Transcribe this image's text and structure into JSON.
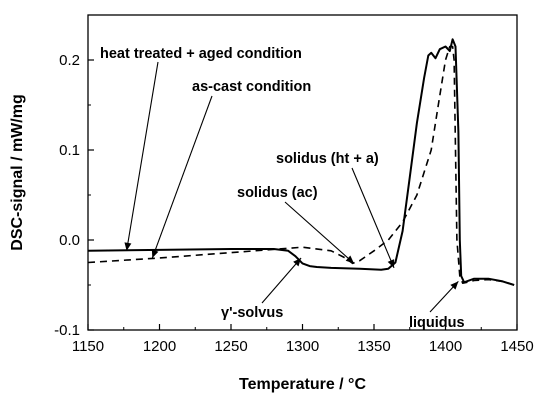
{
  "chart_data": {
    "type": "line",
    "xlabel": "Temperature  / °C",
    "ylabel": "DSC-signal  / mW/mg",
    "xlim": [
      1150,
      1450
    ],
    "ylim": [
      -0.1,
      0.25
    ],
    "x_ticks": [
      1150,
      1200,
      1250,
      1300,
      1350,
      1400,
      1450
    ],
    "x_tick_labels": [
      "1150",
      "1200",
      "1250",
      "1300",
      "1350",
      "1400",
      "1450"
    ],
    "y_ticks": [
      -0.1,
      0.0,
      0.1,
      0.2
    ],
    "y_tick_labels": [
      "-0.1",
      "0.0",
      "0.1",
      "0.2"
    ],
    "grid": false,
    "series": [
      {
        "name": "heat treated + aged condition",
        "style": "solid",
        "color": "#000000",
        "x": [
          1150,
          1200,
          1250,
          1280,
          1290,
          1295,
          1300,
          1305,
          1310,
          1320,
          1340,
          1355,
          1360,
          1365,
          1370,
          1375,
          1380,
          1385,
          1388,
          1390,
          1393,
          1396,
          1400,
          1403,
          1405,
          1407,
          1409,
          1410,
          1411,
          1413,
          1420,
          1430,
          1440,
          1448
        ],
        "y": [
          -0.012,
          -0.011,
          -0.01,
          -0.01,
          -0.012,
          -0.018,
          -0.026,
          -0.029,
          -0.03,
          -0.031,
          -0.032,
          -0.033,
          -0.032,
          -0.025,
          0.01,
          0.07,
          0.13,
          0.18,
          0.205,
          0.208,
          0.202,
          0.212,
          0.215,
          0.21,
          0.223,
          0.215,
          0.12,
          0.0,
          -0.04,
          -0.047,
          -0.043,
          -0.043,
          -0.046,
          -0.05
        ]
      },
      {
        "name": "as-cast condition",
        "style": "dashed",
        "color": "#000000",
        "x": [
          1150,
          1200,
          1250,
          1300,
          1320,
          1330,
          1335,
          1340,
          1350,
          1360,
          1370,
          1380,
          1390,
          1395,
          1400,
          1403,
          1405,
          1406,
          1407,
          1408,
          1410,
          1412,
          1415,
          1420,
          1430,
          1440,
          1448
        ],
        "y": [
          -0.025,
          -0.02,
          -0.014,
          -0.008,
          -0.012,
          -0.02,
          -0.026,
          -0.023,
          -0.012,
          0.0,
          0.02,
          0.05,
          0.1,
          0.15,
          0.2,
          0.215,
          0.215,
          0.2,
          0.1,
          0.0,
          -0.04,
          -0.048,
          -0.047,
          -0.045,
          -0.044,
          -0.046,
          -0.05
        ]
      }
    ],
    "annotations": [
      {
        "text": "heat treated + aged condition",
        "at": [
          1177,
          -0.012
        ]
      },
      {
        "text": "as-cast condition",
        "at": [
          1195,
          -0.02
        ]
      },
      {
        "text": "solidus (ht + a)",
        "at": [
          1364,
          -0.031
        ]
      },
      {
        "text": "solidus (ac)",
        "at": [
          1336,
          -0.026
        ]
      },
      {
        "text": "γ'-solvus",
        "at": [
          1299,
          -0.02
        ]
      },
      {
        "text": "liquidus",
        "at": [
          1409,
          -0.046
        ]
      }
    ]
  }
}
